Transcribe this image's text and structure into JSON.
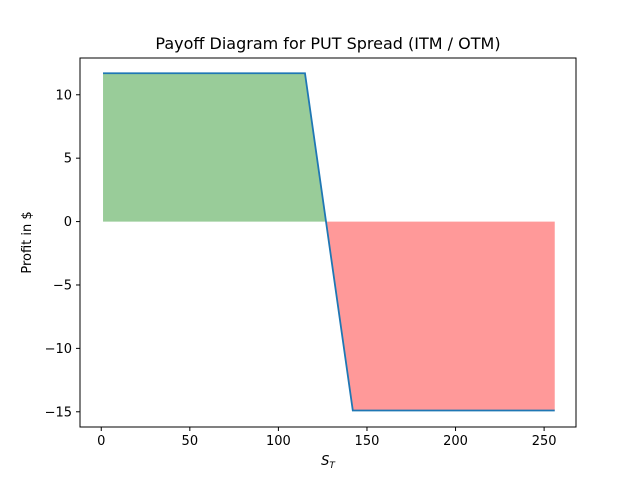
{
  "chart_data": {
    "type": "line",
    "title": "Payoff Diagram for PUT Spread (ITM / OTM)",
    "xlabel_main": "S",
    "xlabel_sub": "T",
    "ylabel": "Profit in $",
    "xlim": [
      -12,
      268
    ],
    "ylim": [
      -16.2,
      12.9
    ],
    "xticks": [
      0,
      50,
      100,
      150,
      200,
      250
    ],
    "yticks": [
      -15,
      -10,
      -5,
      0,
      5,
      10
    ],
    "ytick_labels": [
      "−15",
      "−10",
      "−5",
      "0",
      "5",
      "10"
    ],
    "grid": false,
    "series": [
      {
        "x": [
          1,
          115,
          142,
          256
        ],
        "y": [
          11.7,
          11.7,
          -14.9,
          -14.9
        ]
      }
    ],
    "fill_positive": {
      "x_from": 1,
      "x_to": 127,
      "color": "#99cc99"
    },
    "fill_negative": {
      "x_from": 127,
      "x_to": 256,
      "color": "#ff9999"
    },
    "line_color": "#1f77b4"
  }
}
